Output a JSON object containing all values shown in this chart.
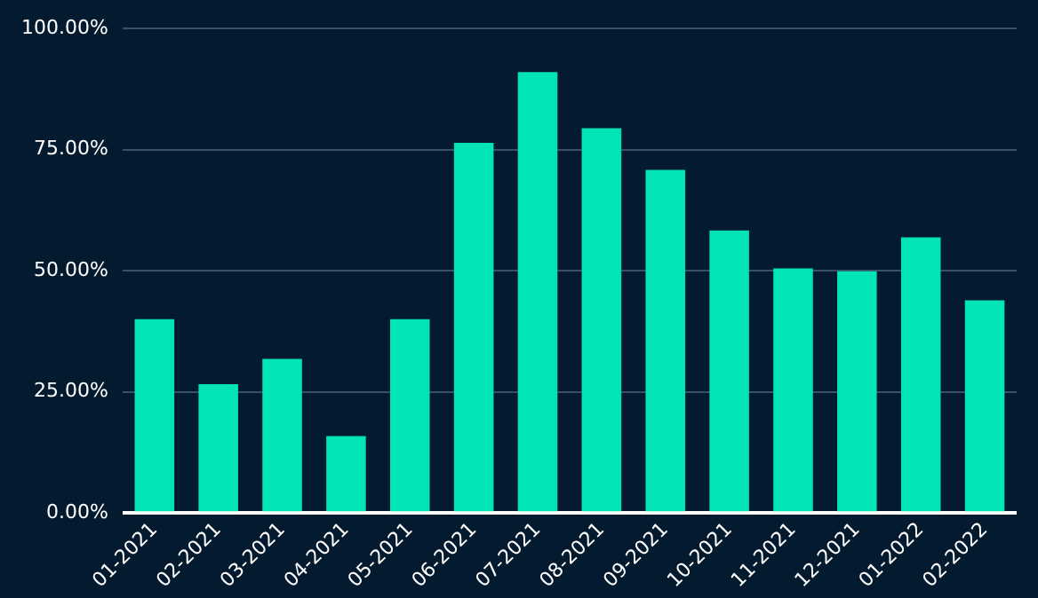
{
  "chart_data": {
    "type": "bar",
    "categories": [
      "01-2021",
      "02-2021",
      "03-2021",
      "04-2021",
      "05-2021",
      "06-2021",
      "07-2021",
      "08-2021",
      "09-2021",
      "10-2021",
      "11-2021",
      "12-2021",
      "01-2022",
      "02-2022"
    ],
    "values": [
      40.0,
      26.6,
      31.8,
      15.9,
      40.0,
      76.4,
      91.0,
      79.4,
      70.8,
      58.3,
      50.5,
      49.9,
      56.9,
      43.9
    ],
    "color": "#00e4b6",
    "ylim": [
      0,
      100
    ],
    "yticks": [
      {
        "value": 0,
        "label": "0.00%"
      },
      {
        "value": 25,
        "label": "25.00%"
      },
      {
        "value": 50,
        "label": "50.00%"
      },
      {
        "value": 75,
        "label": "75.00%"
      },
      {
        "value": 100,
        "label": "100.00%"
      }
    ],
    "grid": "y",
    "legend": false
  }
}
